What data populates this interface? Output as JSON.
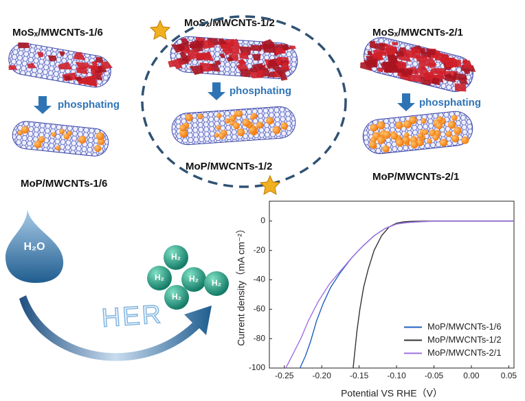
{
  "scheme": {
    "top_left": "MoSₓ/MWCNTs-1/6",
    "bottom_left": "MoP/MWCNTs-1/6",
    "top_middle": "MoSₓ/MWCNTs-1/2",
    "bottom_middle": "MoP/MWCNTs-1/2",
    "top_right": "MoSₓ/MWCNTs-2/1",
    "bottom_right": "MoP/MWCNTs-2/1",
    "step_left": "phosphating",
    "step_middle": "phosphating",
    "step_right": "phosphating",
    "water": "H₂O",
    "hydrogen": [
      "H₂",
      "H₂",
      "H₂",
      "H₂",
      "H₂"
    ],
    "reaction": "HER"
  },
  "chart_data": {
    "type": "line",
    "xlabel": "Potential VS RHE（V）",
    "ylabel": "Current density（mA cm⁻²）",
    "xlim": [
      -0.27,
      0.057
    ],
    "ylim": [
      -100,
      13.5
    ],
    "xticks": [
      -0.25,
      {
        "value": -0.2,
        "label": "-0.20"
      },
      -0.15,
      {
        "value": -0.1,
        "label": "-0.10"
      },
      -0.05,
      {
        "value": 0,
        "label": "0.00"
      },
      0.05
    ],
    "yticks": [
      -100,
      -80,
      -60,
      -40,
      -20,
      0
    ],
    "grid": false,
    "legend": "lower right",
    "series": [
      {
        "name": "MoP/MWCNTs-1/6",
        "color": "#1f5fbf",
        "x": [
          -0.229,
          -0.222,
          -0.215,
          -0.207,
          -0.198,
          -0.188,
          -0.175,
          -0.16,
          -0.145,
          -0.13,
          -0.115,
          -0.1,
          -0.085,
          -0.07,
          -0.05,
          0,
          0.057
        ],
        "values": [
          -100,
          -92,
          -82,
          -68,
          -56,
          -45,
          -35,
          -25,
          -17,
          -10,
          -5,
          -2,
          -1,
          -0.5,
          0,
          0,
          0
        ]
      },
      {
        "name": "MoP/MWCNTs-1/2",
        "color": "#333333",
        "x": [
          -0.158,
          -0.156,
          -0.153,
          -0.149,
          -0.144,
          -0.138,
          -0.13,
          -0.12,
          -0.11,
          -0.1,
          -0.09,
          -0.08,
          -0.06,
          0,
          0.057
        ],
        "values": [
          -100,
          -90,
          -75,
          -60,
          -45,
          -33,
          -20,
          -10,
          -4,
          -1.5,
          -0.5,
          -0.2,
          0,
          0,
          0
        ]
      },
      {
        "name": "MoP/MWCNTs-2/1",
        "color": "#a070e0",
        "x": [
          -0.248,
          -0.238,
          -0.228,
          -0.218,
          -0.205,
          -0.19,
          -0.175,
          -0.16,
          -0.145,
          -0.13,
          -0.115,
          -0.1,
          -0.085,
          -0.07,
          -0.05,
          0,
          0.057
        ],
        "values": [
          -100,
          -90,
          -80,
          -68,
          -55,
          -43,
          -34,
          -25,
          -17,
          -10,
          -5,
          -2,
          -1,
          -0.5,
          0,
          0,
          0
        ]
      }
    ]
  }
}
